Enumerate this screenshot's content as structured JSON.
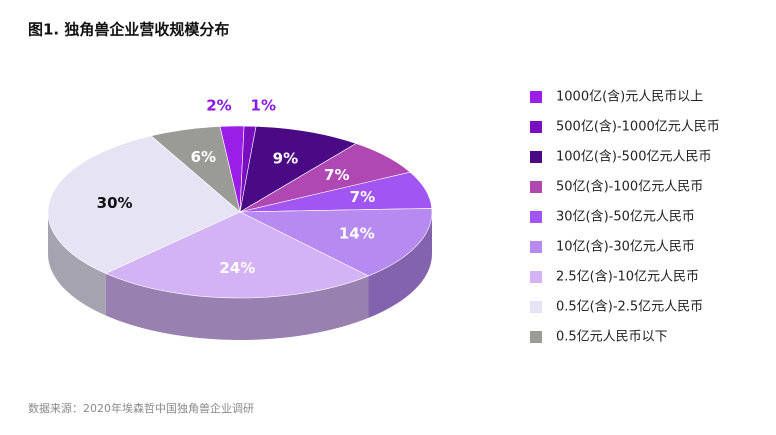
{
  "chart_data": {
    "type": "pie",
    "title": "图1. 独角兽企业营收规模分布",
    "categories": [
      "1000亿(含)元人民币以上",
      "500亿(含)-1000亿元人民币",
      "100亿(含)-500亿元人民币",
      "50亿(含)-100亿元人民币",
      "30亿(含)-50亿元人民币",
      "10亿(含)-30亿元人民币",
      "2.5亿(含)-10亿元人民币",
      "0.5亿(含)-2.5亿元人民币",
      "0.5亿元人民币以下"
    ],
    "values": [
      2,
      1,
      9,
      7,
      7,
      14,
      24,
      30,
      6
    ],
    "value_labels": [
      "2%",
      "1%",
      "9%",
      "7%",
      "7%",
      "14%",
      "24%",
      "30%",
      "6%"
    ],
    "colors": [
      "#9b1de8",
      "#7a0fbf",
      "#4a0a85",
      "#b048b4",
      "#a155f2",
      "#b78af2",
      "#d3b2f5",
      "#e6e3f5",
      "#9a9a96"
    ],
    "source": "数据来源：2020年埃森哲中国独角兽企业调研"
  }
}
